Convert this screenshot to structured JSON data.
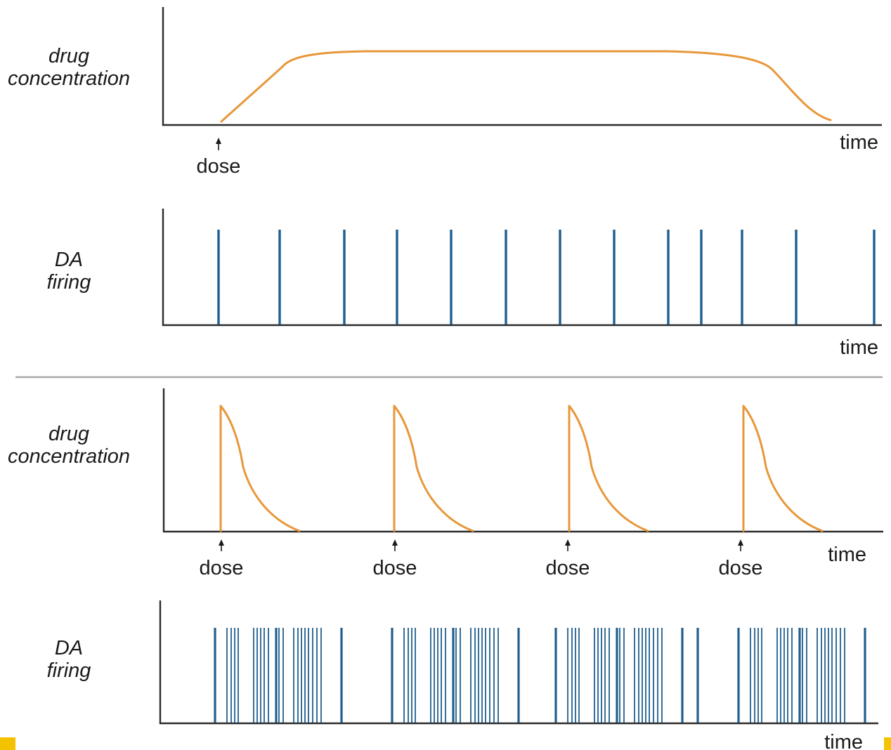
{
  "panels": {
    "single_dose": {
      "concentration": {
        "y_label_lines": [
          "drug",
          "concentration"
        ],
        "x_label": "time",
        "dose_labels": [
          "dose"
        ],
        "color": "#e8973a"
      },
      "firing": {
        "y_label_lines": [
          "DA",
          "firing"
        ],
        "x_label": "time",
        "color": "#1f5f8f"
      }
    },
    "repeated_dose": {
      "concentration": {
        "y_label_lines": [
          "drug",
          "concentration"
        ],
        "x_label": "time",
        "dose_labels": [
          "dose",
          "dose",
          "dose",
          "dose"
        ],
        "color": "#e8973a"
      },
      "firing": {
        "y_label_lines": [
          "DA",
          "firing"
        ],
        "x_label": "time",
        "color": "#1f5f8f"
      }
    }
  },
  "divider_color": "#a8a8a8",
  "corner_marker_color": "#f5c200"
}
